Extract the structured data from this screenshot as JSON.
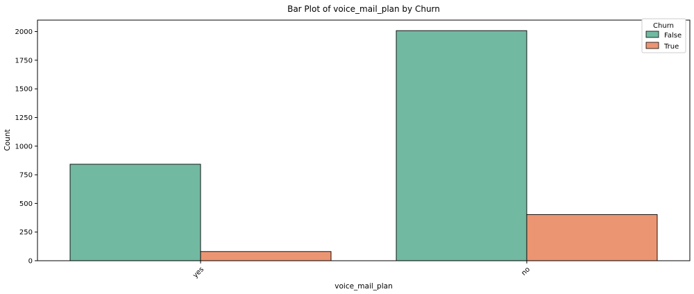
{
  "chart_data": {
    "type": "bar",
    "title": "Bar Plot of voice_mail_plan by Churn",
    "xlabel": "voice_mail_plan",
    "ylabel": "Count",
    "categories": [
      "yes",
      "no"
    ],
    "series": [
      {
        "name": "False",
        "color": "#72b9a2",
        "values": [
          842,
          2008
        ]
      },
      {
        "name": "True",
        "color": "#ec9572",
        "values": [
          80,
          403
        ]
      }
    ],
    "ylim": [
      0,
      2100
    ],
    "yticks": [
      0,
      250,
      500,
      750,
      1000,
      1250,
      1500,
      1750,
      2000
    ],
    "legend": {
      "title": "Churn",
      "placement": "top-right"
    },
    "grid": false,
    "xtick_rotation_deg": 45
  }
}
